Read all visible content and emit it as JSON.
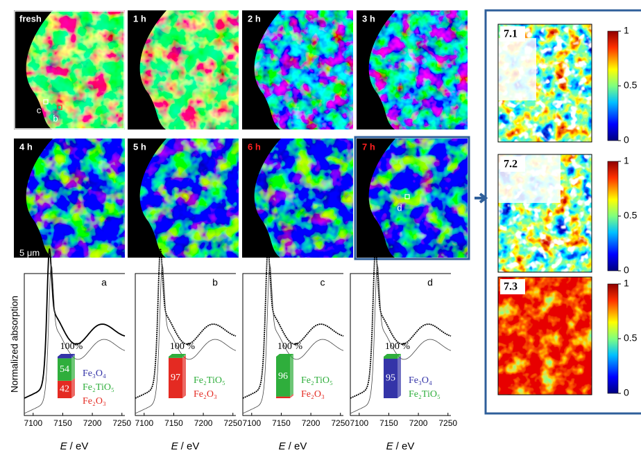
{
  "maps": [
    {
      "label": "fresh"
    },
    {
      "label": "1 h"
    },
    {
      "label": "2 h"
    },
    {
      "label": "3 h"
    },
    {
      "label": "4 h"
    },
    {
      "label": "5 h"
    },
    {
      "label": "6 h"
    },
    {
      "label": "7 h"
    }
  ],
  "markers": [
    "c",
    "b",
    "d"
  ],
  "scale_bar": "5 μm",
  "spectra": {
    "y_label": "Normalized absorption",
    "x_label": {
      "symbol": "E",
      "unit": "/ eV"
    },
    "xlim": [
      7085,
      7255
    ],
    "xticks": [
      7100,
      7150,
      7200,
      7250
    ],
    "panels": [
      {
        "label": "a",
        "total_label": "100%",
        "segments": [
          {
            "color": "#e42a22",
            "value": 42
          },
          {
            "color": "#2fae3c",
            "value": 54
          },
          {
            "color": "#3434a8",
            "value": 4
          }
        ],
        "value_labels": [
          "42",
          "54",
          null
        ],
        "legend": [
          {
            "name": "Fe₃O₄",
            "color": "#3434a8"
          },
          {
            "name": "Fe₂TiO₅",
            "color": "#2fae3c"
          },
          {
            "name": "Fe₂O₃",
            "color": "#e42a22"
          }
        ]
      },
      {
        "label": "b",
        "total_label": "100 %",
        "segments": [
          {
            "color": "#e42a22",
            "value": 97
          },
          {
            "color": "#2fae3c",
            "value": 3
          }
        ],
        "value_labels": [
          "97",
          null
        ],
        "legend": [
          {
            "name": "Fe₂TiO₅",
            "color": "#2fae3c"
          },
          {
            "name": "Fe₂O₃",
            "color": "#e42a22"
          }
        ]
      },
      {
        "label": "c",
        "total_label": "100 %",
        "segments": [
          {
            "color": "#e42a22",
            "value": 4
          },
          {
            "color": "#2fae3c",
            "value": 96
          }
        ],
        "value_labels": [
          null,
          "96"
        ],
        "legend": [
          {
            "name": "Fe₂TiO₅",
            "color": "#2fae3c"
          },
          {
            "name": "Fe₂O₃",
            "color": "#e42a22"
          }
        ]
      },
      {
        "label": "d",
        "total_label": "100 %",
        "segments": [
          {
            "color": "#3434a8",
            "value": 95
          },
          {
            "color": "#2fae3c",
            "value": 5
          }
        ],
        "value_labels": [
          "95",
          null
        ],
        "legend": [
          {
            "name": "Fe₃O₄",
            "color": "#3434a8"
          },
          {
            "name": "Fe₂TiO₅",
            "color": "#2fae3c"
          }
        ]
      }
    ]
  },
  "detail_maps": {
    "panels": [
      {
        "label": "7.1"
      },
      {
        "label": "7.2"
      },
      {
        "label": "7.3"
      }
    ],
    "colorbar": {
      "lim": [
        0,
        1
      ],
      "ticks": [
        0,
        0.5,
        1
      ]
    }
  }
}
